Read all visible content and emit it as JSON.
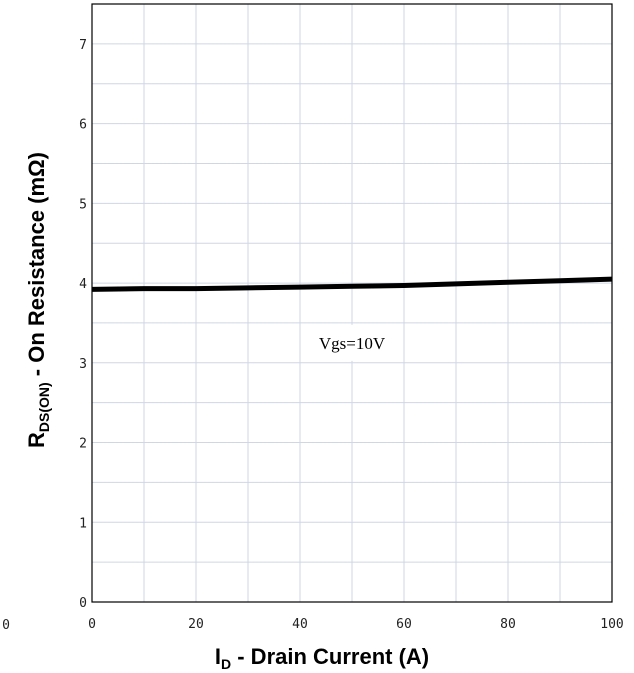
{
  "chart_data": {
    "type": "line",
    "title": "",
    "xlabel": {
      "main": "I",
      "sub": "D",
      "rest": " - Drain Current (A)"
    },
    "ylabel": {
      "main": "R",
      "sub": "DS(ON)",
      "rest": " - On Resistance (mΩ)"
    },
    "xlim": [
      0,
      100
    ],
    "ylim": [
      0,
      7.5
    ],
    "xticks": [
      0,
      20,
      40,
      60,
      80,
      100
    ],
    "yticks": [
      0,
      1,
      2,
      3,
      4,
      5,
      6,
      7
    ],
    "stray_tick_label": "0",
    "grid": true,
    "series": [
      {
        "name": "Vgs=10V",
        "color": "#000000",
        "x": [
          0,
          10,
          20,
          30,
          40,
          50,
          60,
          70,
          80,
          90,
          100
        ],
        "y": [
          3.92,
          3.93,
          3.93,
          3.94,
          3.95,
          3.96,
          3.97,
          3.99,
          4.01,
          4.03,
          4.05
        ]
      }
    ],
    "annotations": [
      {
        "text": "Vgs=10V",
        "x": 50,
        "y": 3.25
      }
    ]
  }
}
